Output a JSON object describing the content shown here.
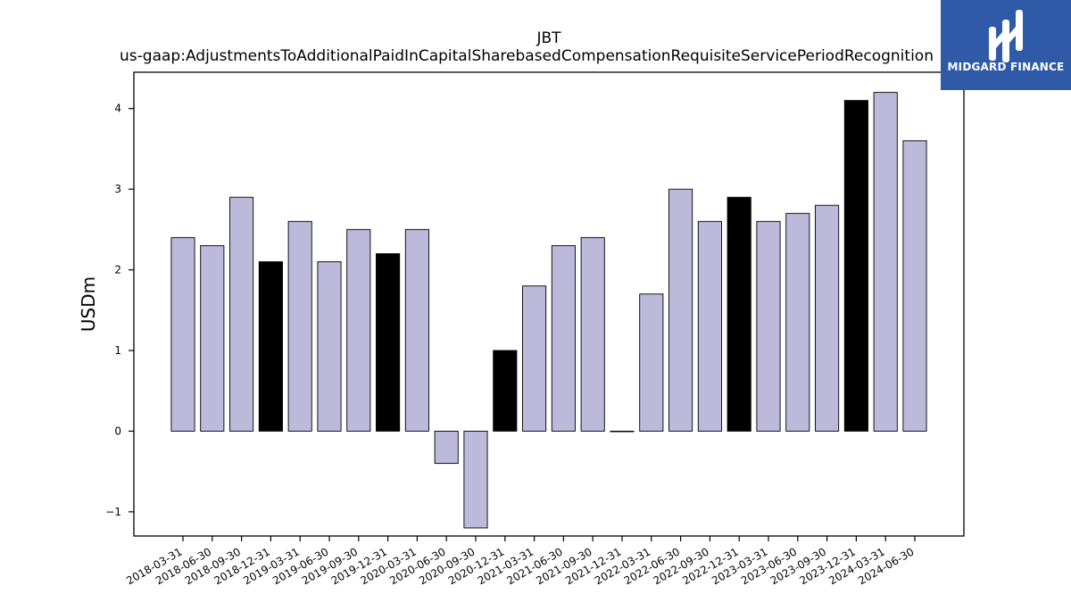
{
  "chart_data": {
    "type": "bar",
    "title_line1": "JBT",
    "title_line2": "us-gaap:AdjustmentsToAdditionalPaidInCapitalSharebasedCompensationRequisiteServicePeriodRecognition",
    "xlabel": "",
    "ylabel": "USDm",
    "ylim": [
      -1.3,
      4.45
    ],
    "yticks": [
      -1,
      0,
      1,
      2,
      3,
      4
    ],
    "ytick_labels": [
      "−1",
      "0",
      "1",
      "2",
      "3",
      "4"
    ],
    "grid": false,
    "categories": [
      "2018-03-31",
      "2018-06-30",
      "2018-09-30",
      "2018-12-31",
      "2019-03-31",
      "2019-06-30",
      "2019-09-30",
      "2019-12-31",
      "2020-03-31",
      "2020-06-30",
      "2020-09-30",
      "2020-12-31",
      "2021-03-31",
      "2021-06-30",
      "2021-09-30",
      "2021-12-31",
      "2022-03-31",
      "2022-06-30",
      "2022-09-30",
      "2022-12-31",
      "2023-03-31",
      "2023-06-30",
      "2023-09-30",
      "2023-12-31",
      "2024-03-31",
      "2024-06-30"
    ],
    "values": [
      2.4,
      2.3,
      2.9,
      2.1,
      2.6,
      2.1,
      2.5,
      2.2,
      2.5,
      -0.4,
      -1.2,
      1.0,
      1.8,
      2.3,
      2.4,
      0.0,
      1.7,
      3.0,
      2.6,
      2.9,
      2.6,
      2.7,
      2.8,
      4.1,
      4.2,
      3.6
    ],
    "bar_colors": [
      "#bcb9da",
      "#bcb9da",
      "#bcb9da",
      "#000000",
      "#bcb9da",
      "#bcb9da",
      "#bcb9da",
      "#000000",
      "#bcb9da",
      "#bcb9da",
      "#bcb9da",
      "#000000",
      "#bcb9da",
      "#bcb9da",
      "#bcb9da",
      "#000000",
      "#bcb9da",
      "#bcb9da",
      "#bcb9da",
      "#000000",
      "#bcb9da",
      "#bcb9da",
      "#bcb9da",
      "#000000",
      "#bcb9da",
      "#bcb9da"
    ]
  },
  "logo": {
    "name": "MIDGARD FINANCE",
    "background": "#2f5aa8",
    "icon": "midgard-logo-icon"
  }
}
